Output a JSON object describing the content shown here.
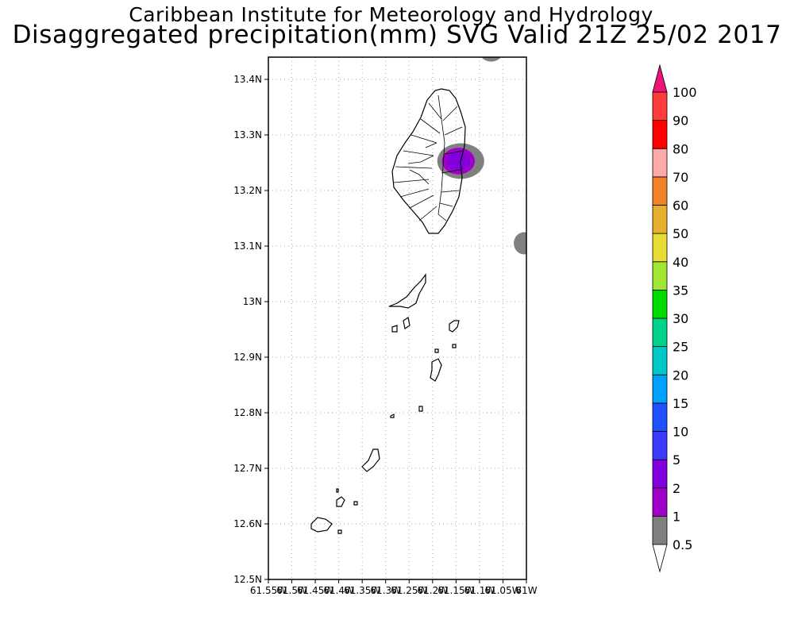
{
  "header": {
    "title": "Caribbean Institute for Meteorology and Hydrology",
    "subtitle": "Disaggregated precipitation(mm) SVG Valid 21Z 25/02 2017"
  },
  "map": {
    "lon_range": [
      -61.55,
      -61.0
    ],
    "lat_range": [
      12.5,
      13.44
    ],
    "lat_ticks": [
      {
        "value": 12.5,
        "label": "12.5N"
      },
      {
        "value": 12.6,
        "label": "12.6N"
      },
      {
        "value": 12.7,
        "label": "12.7N"
      },
      {
        "value": 12.8,
        "label": "12.8N"
      },
      {
        "value": 12.9,
        "label": "12.9N"
      },
      {
        "value": 13.0,
        "label": "13N"
      },
      {
        "value": 13.1,
        "label": "13.1N"
      },
      {
        "value": 13.2,
        "label": "13.2N"
      },
      {
        "value": 13.3,
        "label": "13.3N"
      },
      {
        "value": 13.4,
        "label": "13.4N"
      }
    ],
    "lon_ticks": [
      {
        "value": -61.55,
        "label": "61.55W"
      },
      {
        "value": -61.5,
        "label": "61.5W"
      },
      {
        "value": -61.45,
        "label": "61.45W"
      },
      {
        "value": -61.4,
        "label": "61.4W"
      },
      {
        "value": -61.35,
        "label": "61.35W"
      },
      {
        "value": -61.3,
        "label": "61.3W"
      },
      {
        "value": -61.25,
        "label": "61.25W"
      },
      {
        "value": -61.2,
        "label": "61.2W"
      },
      {
        "value": -61.15,
        "label": "61.15W"
      },
      {
        "value": -61.1,
        "label": "61.1W"
      },
      {
        "value": -61.05,
        "label": "61.05W"
      },
      {
        "value": -61.0,
        "label": "61W"
      }
    ],
    "precip_blobs": [
      {
        "name": "blob-st-vincent-outer",
        "lon": -61.14,
        "lat": 13.253,
        "rlon": 0.05,
        "rlat": 0.032,
        "color": "#808080"
      },
      {
        "name": "blob-st-vincent-middle",
        "lon": -61.145,
        "lat": 13.253,
        "rlon": 0.035,
        "rlat": 0.024,
        "color": "#a000c8"
      },
      {
        "name": "blob-st-vincent-inner",
        "lon": -61.145,
        "lat": 13.253,
        "rlon": 0.025,
        "rlat": 0.017,
        "color": "#8200dc"
      },
      {
        "name": "blob-top-right",
        "lon": -61.075,
        "lat": 13.445,
        "rlon": 0.022,
        "rlat": 0.013,
        "color": "#808080"
      },
      {
        "name": "blob-east-edge",
        "lon": -61.005,
        "lat": 13.105,
        "rlon": 0.022,
        "rlat": 0.02,
        "color": "#808080"
      }
    ]
  },
  "colorbar": {
    "levels": [
      "0.5",
      "1",
      "2",
      "5",
      "10",
      "15",
      "20",
      "25",
      "30",
      "35",
      "40",
      "50",
      "60",
      "70",
      "80",
      "90",
      "100"
    ],
    "colors": [
      "#808080",
      "#a000c8",
      "#8200dc",
      "#3c3cff",
      "#1e50ff",
      "#00a0ff",
      "#00c8c8",
      "#00d28c",
      "#00dc00",
      "#a0e632",
      "#e6dc32",
      "#e6af2d",
      "#f08228",
      "#ffaaaa",
      "#ff0000",
      "#ff3c3c"
    ],
    "below_color": "#ffffff",
    "above_color": "#f0147a"
  }
}
